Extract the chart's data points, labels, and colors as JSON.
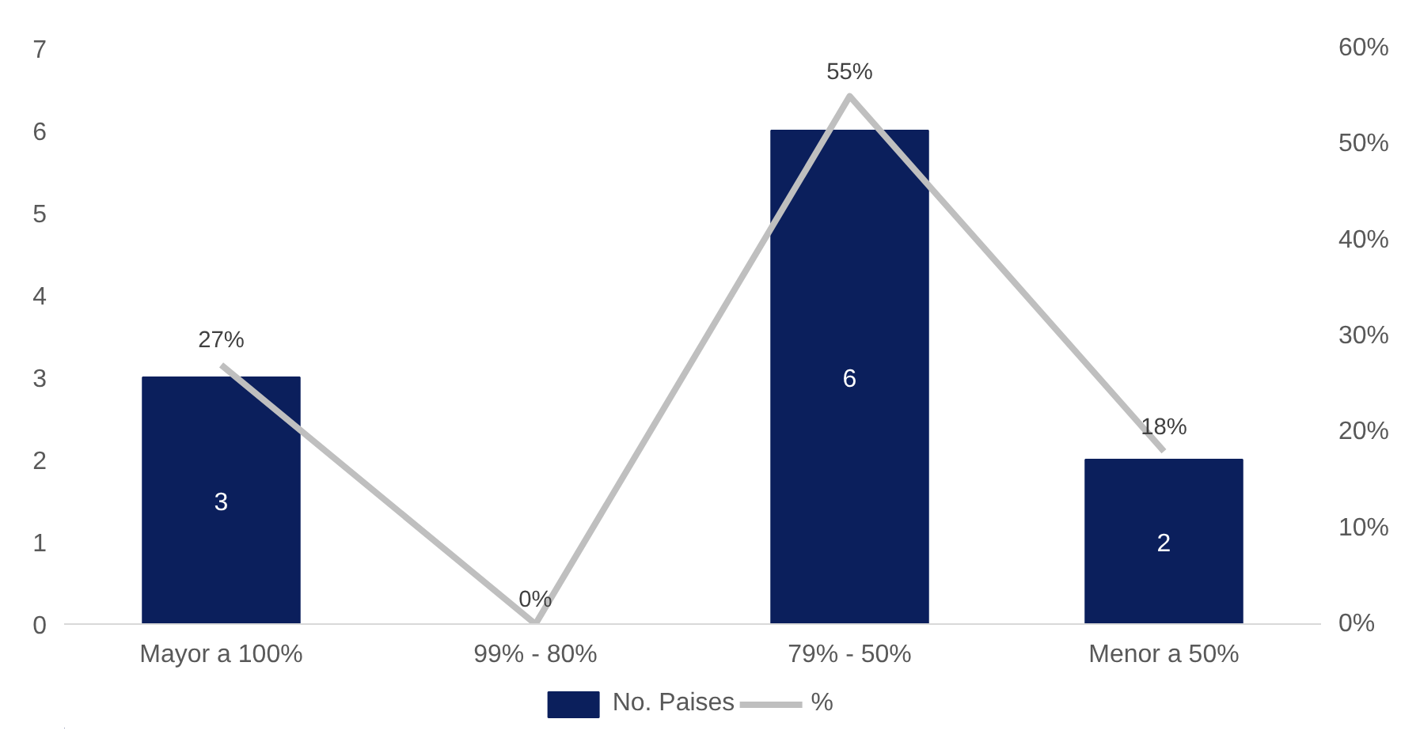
{
  "chart_data": {
    "type": "bar",
    "categories": [
      "Mayor a 100%",
      "99% - 80%",
      "79% - 50%",
      "Menor a 50%"
    ],
    "series": [
      {
        "name": "No. Paises",
        "color": "#0b1f5c",
        "values": [
          3,
          0,
          6,
          2
        ],
        "value_labels": [
          "3",
          null,
          "6",
          "2"
        ]
      },
      {
        "name": "%",
        "type": "line",
        "axis": "y2",
        "color": "#bfbfbf",
        "values": [
          27,
          0,
          55,
          18
        ],
        "value_labels": [
          "27%",
          "0%",
          "55%",
          "18%"
        ]
      }
    ],
    "ylim": [
      0,
      7
    ],
    "yticks": [
      0,
      1,
      2,
      3,
      4,
      5,
      6,
      7
    ],
    "y2lim": [
      0,
      60
    ],
    "y2ticks": [
      {
        "value": 0,
        "label": "0%"
      },
      {
        "value": 10,
        "label": "10%"
      },
      {
        "value": 20,
        "label": "20%"
      },
      {
        "value": 30,
        "label": "30%"
      },
      {
        "value": 40,
        "label": "40%"
      },
      {
        "value": 50,
        "label": "50%"
      },
      {
        "value": 60,
        "label": "60%"
      }
    ],
    "legend": "bottom",
    "line_style": "solid"
  }
}
